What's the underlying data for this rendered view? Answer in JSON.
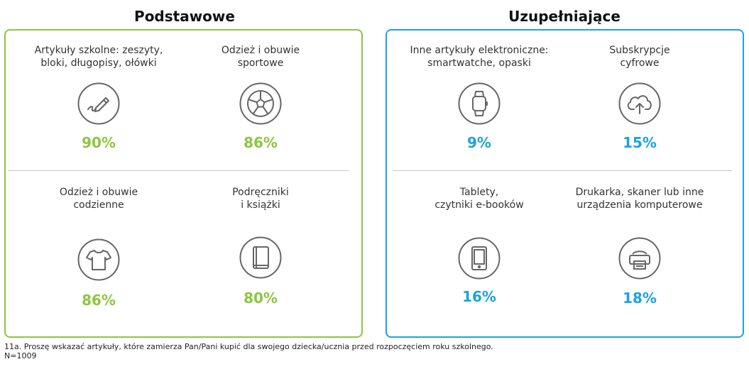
{
  "colors": {
    "basic": "#8dc63f",
    "supplementary": "#1ba3e0",
    "icon_stroke": "#666666"
  },
  "chart_data": [
    {
      "type": "table",
      "title": "Podstawowe",
      "categories": [
        "Artykuły szkolne: zeszyty,\nbloki, długopisy, ołówki",
        "Odzież i obuwie\nsportowe",
        "Odzież i obuwie\ncodzienne",
        "Podręczniki\ni książki"
      ],
      "icons": [
        "pencil-icon",
        "football-icon",
        "tshirt-icon",
        "book-icon"
      ],
      "values": [
        "90%",
        "86%",
        "86%",
        "80%"
      ]
    },
    {
      "type": "table",
      "title": "Uzupełniające",
      "categories": [
        "Inne artykuły elektroniczne:\nsmartwatche, opaski",
        "Subskrypcje\ncyfrowe",
        "Tablety,\nczytniki e-booków",
        "Drukarka, skaner lub inne\nurządzenia komputerowe"
      ],
      "icons": [
        "smartwatch-icon",
        "cloud-upload-icon",
        "tablet-icon",
        "printer-icon"
      ],
      "values": [
        "9%",
        "15%",
        "16%",
        "18%"
      ]
    }
  ],
  "footnote": {
    "question": "11a. Proszę wskazać artykuły, które zamierza Pan/Pani kupić dla swojego dziecka/ucznia przed rozpoczęciem roku szkolnego.",
    "sample": "N=1009"
  }
}
